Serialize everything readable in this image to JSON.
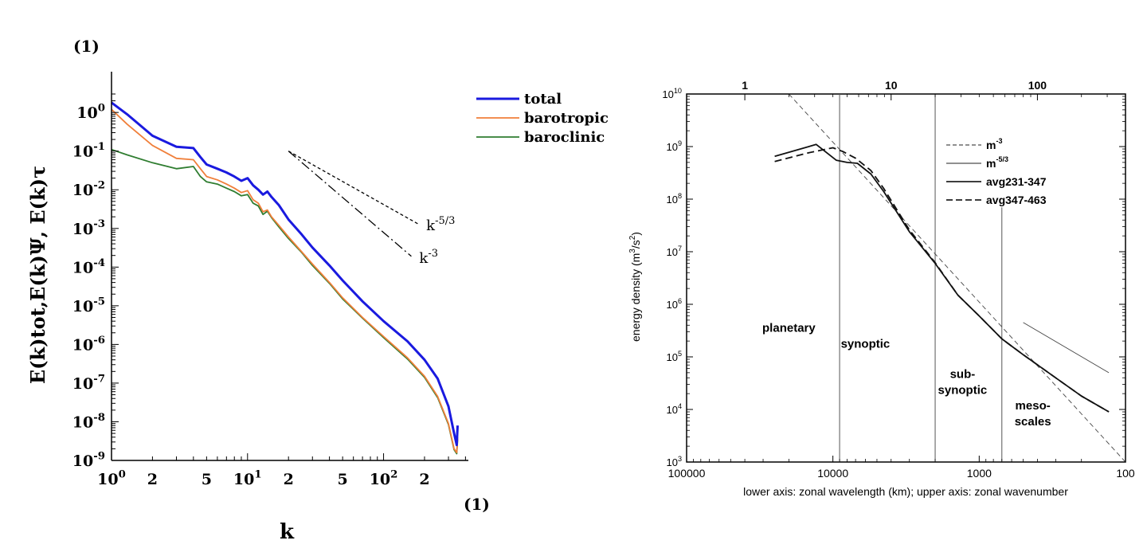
{
  "chart_data": [
    {
      "type": "line",
      "panel_label": "(1)",
      "corner_label": "(1)",
      "xlabel": "k",
      "ylabel": "E(k)tot,E(k)Ψ, E(k)τ",
      "xscale": "log",
      "yscale": "log",
      "xlim": [
        1,
        420
      ],
      "ylim": [
        1e-09,
        3
      ],
      "x_ticks": [
        {
          "v": 1,
          "t": "10",
          "e": "0"
        },
        {
          "v": 2,
          "t": "2",
          "e": ""
        },
        {
          "v": 5,
          "t": "5",
          "e": ""
        },
        {
          "v": 10,
          "t": "10",
          "e": "1"
        },
        {
          "v": 20,
          "t": "2",
          "e": ""
        },
        {
          "v": 50,
          "t": "5",
          "e": ""
        },
        {
          "v": 100,
          "t": "10",
          "e": "2"
        },
        {
          "v": 200,
          "t": "2",
          "e": ""
        }
      ],
      "y_ticks": [
        {
          "v": 1,
          "t": "10",
          "e": "0"
        },
        {
          "v": 0.1,
          "t": "10",
          "e": "-1"
        },
        {
          "v": 0.01,
          "t": "10",
          "e": "-2"
        },
        {
          "v": 0.001,
          "t": "10",
          "e": "-3"
        },
        {
          "v": 0.0001,
          "t": "10",
          "e": "-4"
        },
        {
          "v": 1e-05,
          "t": "10",
          "e": "-5"
        },
        {
          "v": 1e-06,
          "t": "10",
          "e": "-6"
        },
        {
          "v": 1e-07,
          "t": "10",
          "e": "-7"
        },
        {
          "v": 1e-08,
          "t": "10",
          "e": "-8"
        },
        {
          "v": 1e-09,
          "t": "10",
          "e": "-9"
        }
      ],
      "legend_placement": "outside-right-top",
      "series": [
        {
          "name": "total",
          "color": "#1a1adf",
          "x": [
            1,
            1.3,
            2,
            3,
            4,
            4.5,
            5,
            6,
            7,
            8,
            9,
            10,
            11,
            12,
            13,
            14,
            15,
            17,
            20,
            25,
            30,
            40,
            50,
            70,
            100,
            150,
            200,
            250,
            300,
            330,
            345,
            350
          ],
          "y": [
            1.8,
            0.9,
            0.25,
            0.13,
            0.12,
            0.07,
            0.045,
            0.035,
            0.028,
            0.022,
            0.017,
            0.02,
            0.013,
            0.01,
            0.0075,
            0.009,
            0.0065,
            0.004,
            0.0017,
            0.0007,
            0.00032,
            0.00011,
            4.5e-05,
            1.3e-05,
            4e-06,
            1.2e-06,
            4e-07,
            1.3e-07,
            2.5e-08,
            5e-09,
            2.5e-09,
            8e-09
          ]
        },
        {
          "name": "barotropic",
          "color": "#f07f3a",
          "x": [
            1,
            1.3,
            2,
            3,
            4,
            4.5,
            5,
            6,
            7,
            8,
            9,
            10,
            11,
            12,
            13,
            14,
            15,
            17,
            20,
            25,
            30,
            40,
            50,
            70,
            100,
            150,
            200,
            250,
            300,
            330,
            345,
            350
          ],
          "y": [
            1.2,
            0.5,
            0.14,
            0.065,
            0.06,
            0.035,
            0.022,
            0.018,
            0.014,
            0.011,
            0.0085,
            0.0095,
            0.0055,
            0.0045,
            0.0027,
            0.003,
            0.002,
            0.0012,
            0.0006,
            0.00025,
            0.00012,
            4e-05,
            1.6e-05,
            5e-06,
            1.6e-06,
            4.5e-07,
            1.5e-07,
            4.5e-08,
            9e-09,
            2e-09,
            1.6e-09,
            4e-09
          ]
        },
        {
          "name": "baroclinic",
          "color": "#2f7d30",
          "x": [
            1,
            1.3,
            2,
            3,
            4,
            4.5,
            5,
            6,
            7,
            8,
            9,
            10,
            11,
            12,
            13,
            14,
            15,
            17,
            20,
            25,
            30,
            40,
            50,
            70,
            100,
            150,
            200,
            250,
            300,
            330,
            345,
            350
          ],
          "y": [
            0.11,
            0.08,
            0.05,
            0.035,
            0.04,
            0.022,
            0.016,
            0.014,
            0.011,
            0.009,
            0.007,
            0.0075,
            0.0045,
            0.0038,
            0.0023,
            0.0028,
            0.0019,
            0.0011,
            0.00055,
            0.00024,
            0.00011,
            3.8e-05,
            1.5e-05,
            4.8e-06,
            1.5e-06,
            4.2e-07,
            1.4e-07,
            4.2e-08,
            8.5e-09,
            1.9e-09,
            1.5e-09,
            3.5e-09
          ]
        }
      ],
      "reference_lines": [
        {
          "label": "k",
          "exp": "-5/3",
          "x": [
            20,
            180
          ],
          "y": [
            0.1,
            0.0013
          ]
        },
        {
          "label": "k",
          "exp": "-3",
          "x": [
            20,
            160
          ],
          "y": [
            0.1,
            0.00019
          ]
        }
      ]
    },
    {
      "type": "line",
      "xlabel": "lower axis: zonal wavelength (km); upper axis: zonal wavenumber",
      "ylabel_prefix": "energy density (m",
      "ylabel_exp1": "3",
      "ylabel_mid": "/s",
      "ylabel_exp2": "2",
      "ylabel_suffix": ")",
      "xscale": "log",
      "yscale": "log",
      "xlim": [
        100000,
        100
      ],
      "ylim": [
        1000,
        10000000000.0
      ],
      "x_ticks": [
        "100000",
        "10000",
        "1000",
        "100"
      ],
      "top_ticks": [
        "1",
        "10",
        "100"
      ],
      "y_ticks": [
        {
          "v": 1000,
          "t": "10",
          "e": "3"
        },
        {
          "v": 10000,
          "t": "10",
          "e": "4"
        },
        {
          "v": 100000,
          "t": "10",
          "e": "5"
        },
        {
          "v": 1000000,
          "t": "10",
          "e": "6"
        },
        {
          "v": 10000000,
          "t": "10",
          "e": "7"
        },
        {
          "v": 100000000,
          "t": "10",
          "e": "8"
        },
        {
          "v": 1000000000,
          "t": "10",
          "e": "9"
        },
        {
          "v": 10000000000,
          "t": "10",
          "e": "10"
        }
      ],
      "legend_placement": "top-right",
      "legend": [
        {
          "label": "m",
          "exp": "-3",
          "style": "thin-dash"
        },
        {
          "label": "m",
          "exp": "-5/3",
          "style": "thin-solid"
        },
        {
          "label": "avg231-347",
          "exp": "",
          "style": "solid"
        },
        {
          "label": "avg347-463",
          "exp": "",
          "style": "dash"
        }
      ],
      "series": [
        {
          "name": "avg231-347",
          "style": "solid",
          "x": [
            25000,
            13000,
            9500,
            8000,
            6800,
            5500,
            4500,
            3000,
            2000,
            1400,
            1000,
            700,
            500,
            300,
            200,
            130
          ],
          "y": [
            650000000,
            1100000000,
            550000000,
            500000000,
            480000000,
            300000000,
            140000000,
            24000000,
            6000000,
            1500000,
            600000,
            220000,
            110000,
            40000,
            18000,
            9000
          ]
        },
        {
          "name": "avg347-463",
          "style": "dash",
          "x": [
            25000,
            15000,
            10000,
            8500,
            7000,
            5500,
            4500,
            3000,
            2000,
            1400,
            1000,
            700,
            500,
            300,
            200,
            130
          ],
          "y": [
            520000000,
            750000000,
            950000000,
            800000000,
            600000000,
            350000000,
            160000000,
            26000000,
            6200000,
            1500000,
            600000,
            220000,
            110000,
            40000,
            18000,
            9000
          ]
        }
      ],
      "reference_lines": [
        {
          "name": "m^-3",
          "style": "thin-dash",
          "x": [
            20000,
            100
          ],
          "y": [
            10000000000,
            1000
          ]
        },
        {
          "name": "m^-5/3",
          "style": "thin-solid",
          "x": [
            500,
            130
          ],
          "y": [
            450000,
            50000
          ]
        }
      ],
      "vertical_lines": [
        9000,
        2000,
        700
      ],
      "region_labels": [
        {
          "lines": [
            "planetary"
          ],
          "x": 20000,
          "y": 300000
        },
        {
          "lines": [
            "synoptic"
          ],
          "x": 6000,
          "y": 150000
        },
        {
          "lines": [
            "sub-",
            "synoptic"
          ],
          "x": 1300,
          "y": 40000
        },
        {
          "lines": [
            "meso-",
            "scales"
          ],
          "x": 430,
          "y": 10000
        }
      ]
    }
  ]
}
